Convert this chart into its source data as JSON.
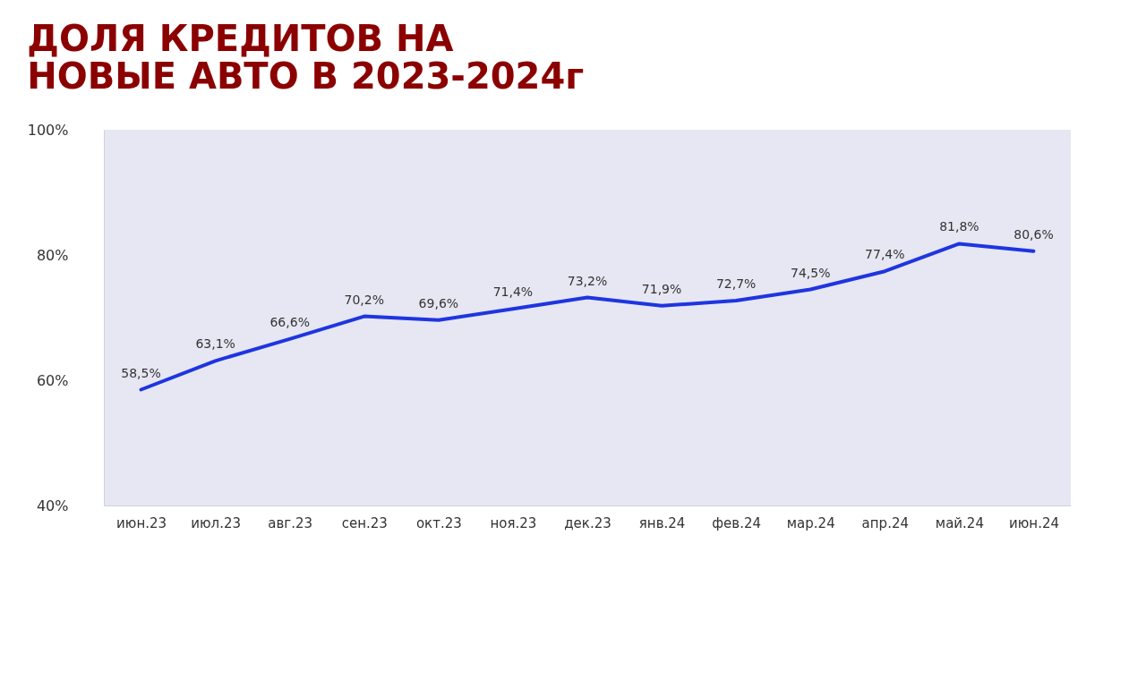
{
  "chart_data": {
    "type": "line",
    "title": [
      "ДОЛЯ КРЕДИТОВ НА",
      "НОВЫЕ АВТО В 2023-2024г"
    ],
    "categories": [
      "июн.23",
      "июл.23",
      "авг.23",
      "сен.23",
      "окт.23",
      "ноя.23",
      "дек.23",
      "янв.24",
      "фев.24",
      "мар.24",
      "апр.24",
      "май.24",
      "июн.24"
    ],
    "series": [
      {
        "color": "#1f35e0",
        "values": [
          58.5,
          63.1,
          66.6,
          70.2,
          69.6,
          71.4,
          73.2,
          71.9,
          72.7,
          74.5,
          77.4,
          81.8,
          80.6
        ],
        "value_labels": [
          "58,5%",
          "63,1%",
          "66,6%",
          "70,2%",
          "69,6%",
          "71,4%",
          "73,2%",
          "71,9%",
          "72,7%",
          "74,5%",
          "77,4%",
          "81,8%",
          "80,6%"
        ]
      }
    ],
    "ylim": [
      40,
      100
    ],
    "yticks": [
      {
        "value": 40,
        "label": "40%"
      },
      {
        "value": 60,
        "label": "60%"
      },
      {
        "value": 80,
        "label": "80%"
      },
      {
        "value": 100,
        "label": "100%"
      }
    ],
    "grid": false,
    "marker": "none",
    "line_style": "solid"
  }
}
